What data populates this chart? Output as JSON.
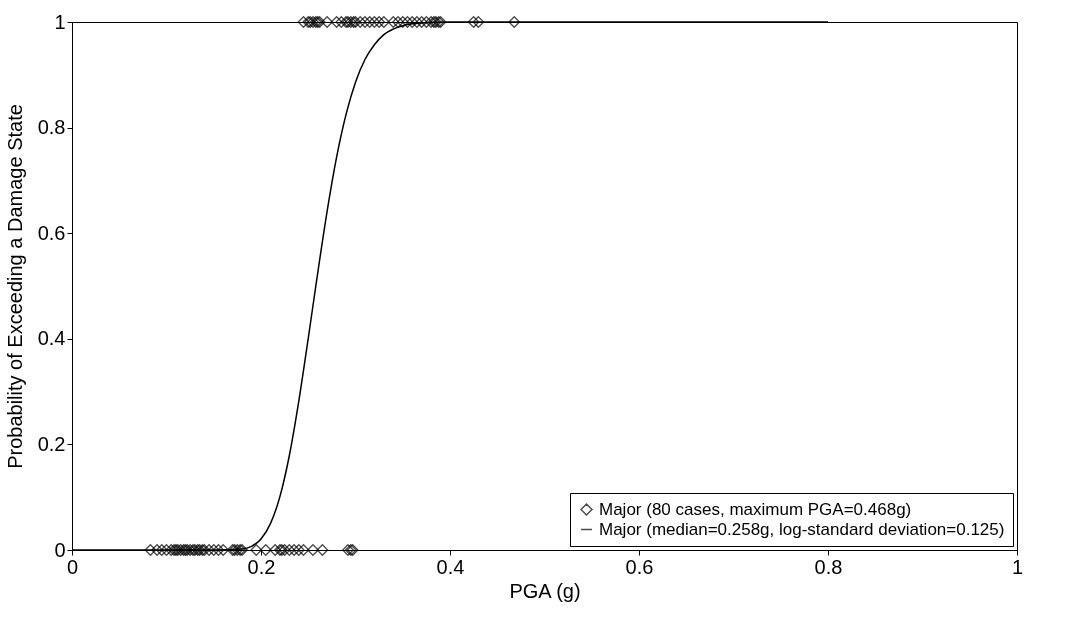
{
  "chart_data": {
    "type": "scatter",
    "xlabel": "PGA (g)",
    "ylabel": "Probability of Exceeding a Damage State",
    "xlim": [
      0,
      1
    ],
    "xticks": [
      0,
      0.2,
      0.4,
      0.6,
      0.8,
      1
    ],
    "ylim": [
      0,
      1
    ],
    "yticks": [
      0,
      0.2,
      0.4,
      0.6,
      0.8,
      1
    ],
    "grid": false,
    "legend": "bottom right",
    "series": [
      {
        "name": "Major (80 cases, maximum PGA=0.468g)",
        "marker": "diamond",
        "color": "#000000",
        "x": [
          0.083,
          0.09,
          0.095,
          0.1,
          0.105,
          0.108,
          0.11,
          0.112,
          0.115,
          0.118,
          0.12,
          0.122,
          0.125,
          0.128,
          0.13,
          0.133,
          0.135,
          0.138,
          0.14,
          0.145,
          0.15,
          0.155,
          0.16,
          0.17,
          0.172,
          0.175,
          0.178,
          0.18,
          0.195,
          0.205,
          0.215,
          0.22,
          0.222,
          0.225,
          0.23,
          0.235,
          0.24,
          0.245,
          0.255,
          0.265,
          0.292,
          0.295,
          0.297,
          0.245,
          0.25,
          0.252,
          0.255,
          0.258,
          0.26,
          0.262,
          0.27,
          0.28,
          0.285,
          0.29,
          0.292,
          0.295,
          0.298,
          0.3,
          0.305,
          0.31,
          0.315,
          0.32,
          0.325,
          0.33,
          0.34,
          0.345,
          0.35,
          0.355,
          0.36,
          0.365,
          0.37,
          0.375,
          0.38,
          0.383,
          0.385,
          0.388,
          0.39,
          0.425,
          0.43,
          0.468
        ],
        "values": [
          0,
          0,
          0,
          0,
          0,
          0,
          0,
          0,
          0,
          0,
          0,
          0,
          0,
          0,
          0,
          0,
          0,
          0,
          0,
          0,
          0,
          0,
          0,
          0,
          0,
          0,
          0,
          0,
          0,
          0,
          0,
          0,
          0,
          0,
          0,
          0,
          0,
          0,
          0,
          0,
          0,
          0,
          0,
          1,
          1,
          1,
          1,
          1,
          1,
          1,
          1,
          1,
          1,
          1,
          1,
          1,
          1,
          1,
          1,
          1,
          1,
          1,
          1,
          1,
          1,
          1,
          1,
          1,
          1,
          1,
          1,
          1,
          1,
          1,
          1,
          1,
          1,
          1,
          1,
          1
        ]
      },
      {
        "name": "Major (median=0.258g, log-standard deviation=0.125)",
        "type": "line",
        "line_style": "solid",
        "color": "#000000",
        "x": [
          0,
          0.15,
          0.18,
          0.19,
          0.2,
          0.21,
          0.22,
          0.23,
          0.24,
          0.25,
          0.258,
          0.27,
          0.28,
          0.29,
          0.3,
          0.31,
          0.32,
          0.33,
          0.35,
          0.37,
          0.4,
          0.8
        ],
        "values": [
          0,
          0,
          0.002,
          0.007,
          0.021,
          0.05,
          0.101,
          0.179,
          0.282,
          0.401,
          0.5,
          0.642,
          0.744,
          0.825,
          0.886,
          0.929,
          0.957,
          0.976,
          0.993,
          0.998,
          1,
          1
        ]
      }
    ]
  }
}
